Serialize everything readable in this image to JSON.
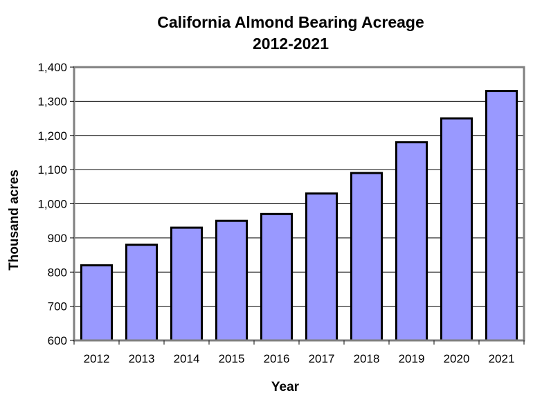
{
  "chart_data": {
    "type": "bar",
    "title": "California Almond Bearing Acreage",
    "subtitle": "2012-2021",
    "xlabel": "Year",
    "ylabel": "Thousand acres",
    "categories": [
      "2012",
      "2013",
      "2014",
      "2015",
      "2016",
      "2017",
      "2018",
      "2019",
      "2020",
      "2021"
    ],
    "values": [
      820,
      880,
      930,
      950,
      970,
      1030,
      1090,
      1180,
      1250,
      1330
    ],
    "ylim": [
      600,
      1400
    ],
    "yticks": [
      600,
      700,
      800,
      900,
      1000,
      1100,
      1200,
      1300,
      1400
    ],
    "ytick_labels": [
      "600",
      "700",
      "800",
      "900",
      "1,000",
      "1,100",
      "1,200",
      "1,300",
      "1,400"
    ],
    "grid": true,
    "legend": "none",
    "colors": {
      "bar_fill": "#9999ff",
      "bar_stroke": "#000000",
      "grid": "#000000",
      "plot_border": "#808080"
    }
  }
}
